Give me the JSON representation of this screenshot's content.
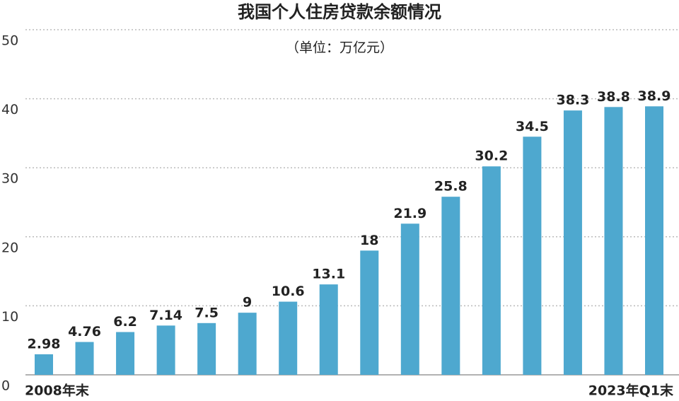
{
  "chart_data": {
    "type": "bar",
    "title": "我国个人住房贷款余额情况",
    "subtitle": "（单位：万亿元）",
    "categories": [
      "2008年末",
      null,
      null,
      null,
      null,
      null,
      null,
      null,
      null,
      null,
      null,
      null,
      null,
      null,
      null,
      "2023年Q1末"
    ],
    "values": [
      2.98,
      4.76,
      6.2,
      7.14,
      7.5,
      9,
      10.6,
      13.1,
      18,
      21.9,
      25.8,
      30.2,
      34.5,
      38.3,
      38.8,
      38.9
    ],
    "color": "#4ea8cf",
    "ylim": [
      0,
      50
    ],
    "yticks": [
      0,
      10,
      20,
      30,
      40,
      50
    ],
    "grid": true
  }
}
